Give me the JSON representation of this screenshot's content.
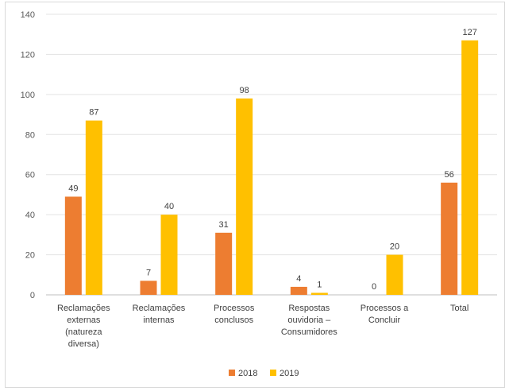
{
  "chart_data": {
    "type": "bar",
    "categories": [
      [
        "Reclamações",
        "externas",
        "(natureza",
        "diversa)"
      ],
      [
        "Reclamações",
        "internas"
      ],
      [
        "Processos",
        "conclusos"
      ],
      [
        "Respostas",
        "ouvidoria –",
        "Consumidores"
      ],
      [
        "Processos a",
        "Concluir"
      ],
      [
        "Total"
      ]
    ],
    "series": [
      {
        "name": "2018",
        "color": "#ED7D31",
        "values": [
          49,
          7,
          31,
          4,
          0,
          56
        ]
      },
      {
        "name": "2019",
        "color": "#FFC000",
        "values": [
          87,
          40,
          98,
          1,
          20,
          127
        ]
      }
    ],
    "ylim": [
      0,
      140
    ],
    "yticks": [
      0,
      20,
      40,
      60,
      80,
      100,
      120,
      140
    ],
    "grid": true,
    "legend_position": "bottom"
  }
}
